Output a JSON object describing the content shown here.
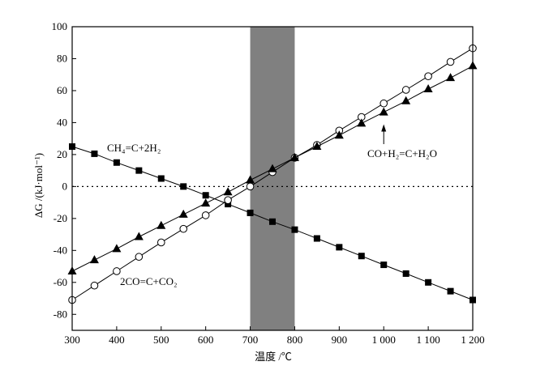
{
  "chart_data": {
    "type": "line",
    "xlabel": "温度 /℃",
    "ylabel": "ΔG /(kJ·mol⁻¹)",
    "xlim": [
      300,
      1200
    ],
    "ylim": [
      -90,
      100
    ],
    "x_ticks": [
      300,
      400,
      500,
      600,
      700,
      800,
      900,
      1000,
      1100,
      1200
    ],
    "x_tick_labels": [
      "300",
      "400",
      "500",
      "600",
      "700",
      "800",
      "900",
      "1 000",
      "1 100",
      "1 200"
    ],
    "y_ticks": [
      -80,
      -60,
      -40,
      -20,
      0,
      20,
      40,
      60,
      80,
      100
    ],
    "y_tick_labels": [
      "-80",
      "-60",
      "-40",
      "-20",
      "0",
      "20",
      "40",
      "60",
      "80",
      "100"
    ],
    "reference_line": {
      "y": 0,
      "style": "dotted"
    },
    "shaded_region": {
      "x": [
        700,
        800
      ],
      "color": "#808080"
    },
    "grid": false,
    "x": [
      300,
      350,
      400,
      450,
      500,
      550,
      600,
      650,
      700,
      750,
      800,
      850,
      900,
      950,
      1000,
      1050,
      1100,
      1150,
      1200
    ],
    "series": [
      {
        "name": "CH₄=C+2H₂",
        "marker": "square-filled",
        "values": [
          25,
          20.5,
          15,
          10,
          5,
          0,
          -5.5,
          -11,
          -16.5,
          -22,
          -27,
          -32.5,
          -38,
          -43.5,
          -49,
          -54.5,
          -60,
          -65.5,
          -71
        ]
      },
      {
        "name": "2CO=C+CO₂",
        "marker": "circle-open",
        "values": [
          -71,
          -62,
          -53,
          -44,
          -35,
          -26.5,
          -18,
          -8.5,
          0,
          9,
          18,
          26,
          35,
          43.5,
          52,
          60.5,
          69,
          78,
          86.5
        ]
      },
      {
        "name": "CO+H₂=C+H₂O",
        "marker": "triangle-filled",
        "values": [
          -53,
          -46,
          -39,
          -31.5,
          -24.5,
          -17.5,
          -10.5,
          -3.5,
          4,
          11,
          18,
          25,
          32,
          39.5,
          46.5,
          53.5,
          61,
          68,
          75.5
        ]
      }
    ],
    "annotations": [
      {
        "text": "CH₄=C+2H₂",
        "series": 0
      },
      {
        "text": "2CO=C+CO₂",
        "series": 1
      },
      {
        "text": "CO+H₂=C+H₂O",
        "series": 2,
        "arrow": true
      }
    ]
  }
}
